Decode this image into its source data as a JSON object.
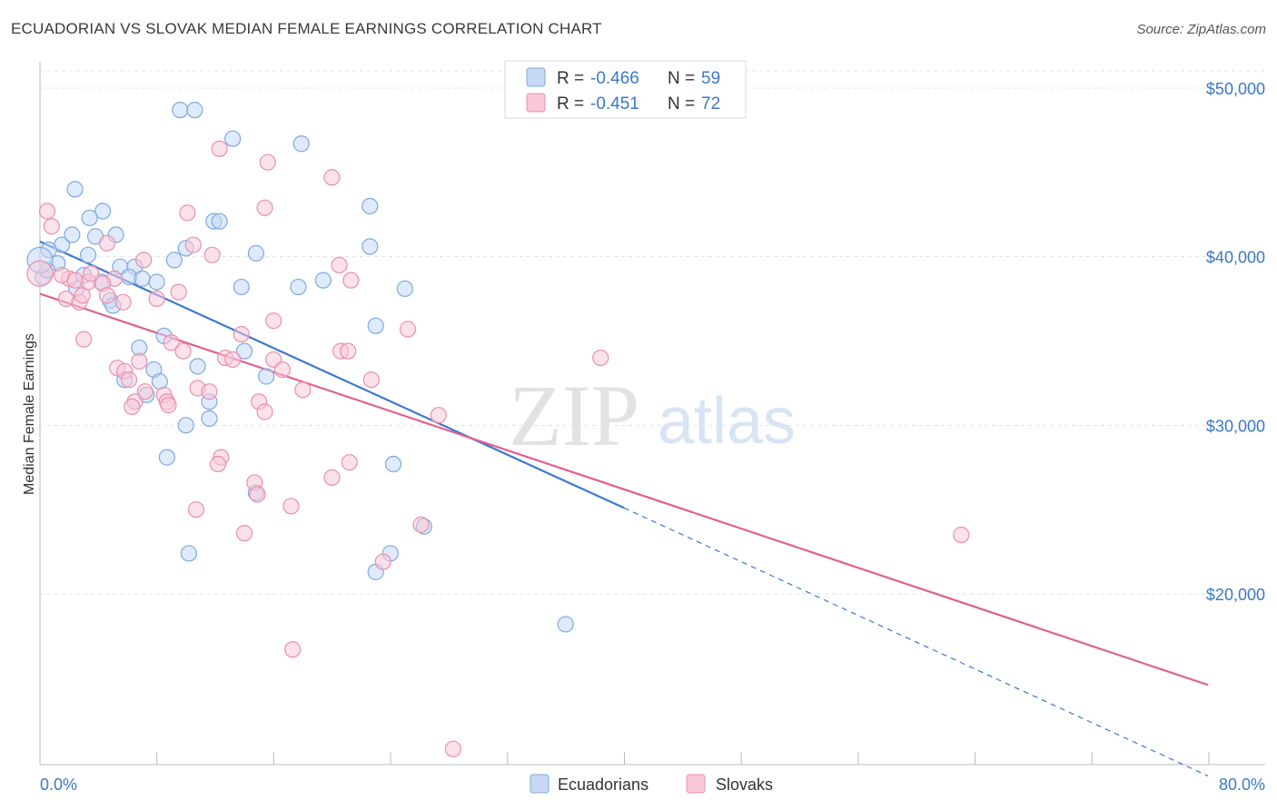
{
  "title": "ECUADORIAN VS SLOVAK MEDIAN FEMALE EARNINGS CORRELATION CHART",
  "source": "Source: ZipAtlas.com",
  "watermark": {
    "zip": "ZIP",
    "atlas": "atlas"
  },
  "legend": [
    {
      "r_label": "R =",
      "r_value": "-0.466",
      "n_label": "N =",
      "n_value": "59",
      "color": "#7fa9e0",
      "fill": "#c5d9f5"
    },
    {
      "r_label": "R =",
      "r_value": "-0.451",
      "n_label": "N =",
      "n_value": "72",
      "color": "#e890ac",
      "fill": "#f8c8d8"
    }
  ],
  "bottom_legend": [
    {
      "label": "Ecuadorians",
      "color": "#7fa9e0",
      "fill": "#c5d9f5"
    },
    {
      "label": "Slovaks",
      "color": "#e890ac",
      "fill": "#f8c8d8"
    }
  ],
  "chart_data": {
    "type": "scatter",
    "title": "ECUADORIAN VS SLOVAK MEDIAN FEMALE EARNINGS CORRELATION CHART",
    "xlabel": "",
    "ylabel": "Median Female Earnings",
    "xlim": [
      0,
      80
    ],
    "ylim": [
      10000,
      53000
    ],
    "x_tick_labels": [
      "0.0%",
      "80.0%"
    ],
    "y_ticks": [
      20000,
      30000,
      40000,
      50000
    ],
    "y_tick_labels": [
      "$20,000",
      "$30,000",
      "$40,000",
      "$50,000"
    ],
    "grid": true,
    "legend_position": "top-center",
    "series": [
      {
        "name": "Ecuadorians",
        "color": "#3b78d0",
        "fill": "#c5d9f5",
        "trend": {
          "x0": 0,
          "y0": 40900,
          "x1": 40,
          "y1": 25100,
          "dashed_to_x": 80,
          "dashed_to_y": 9200
        },
        "points": [
          [
            9.6,
            48700
          ],
          [
            10.6,
            48700
          ],
          [
            13.2,
            47000
          ],
          [
            17.9,
            46700
          ],
          [
            2.4,
            44000
          ],
          [
            4.3,
            42700
          ],
          [
            3.4,
            42300
          ],
          [
            11.9,
            42100
          ],
          [
            12.3,
            42100
          ],
          [
            22.6,
            43000
          ],
          [
            3.8,
            41200
          ],
          [
            5.2,
            41300
          ],
          [
            1.5,
            40700
          ],
          [
            22.6,
            40600
          ],
          [
            0.6,
            40400
          ],
          [
            2.2,
            41300
          ],
          [
            10.0,
            40500
          ],
          [
            14.8,
            40200
          ],
          [
            3.3,
            40100
          ],
          [
            1.2,
            39600
          ],
          [
            5.5,
            39400
          ],
          [
            6.5,
            39400
          ],
          [
            9.2,
            39800
          ],
          [
            0.2,
            38800
          ],
          [
            0.5,
            39200
          ],
          [
            3.0,
            38900
          ],
          [
            6.1,
            38800
          ],
          [
            7.0,
            38700
          ],
          [
            8.0,
            38500
          ],
          [
            13.8,
            38200
          ],
          [
            17.7,
            38200
          ],
          [
            19.4,
            38600
          ],
          [
            25.0,
            38100
          ],
          [
            4.2,
            38500
          ],
          [
            2.5,
            38100
          ],
          [
            4.8,
            37400
          ],
          [
            5.0,
            37100
          ],
          [
            23.0,
            35900
          ],
          [
            8.5,
            35300
          ],
          [
            6.8,
            34600
          ],
          [
            14.0,
            34400
          ],
          [
            10.8,
            33500
          ],
          [
            7.8,
            33300
          ],
          [
            5.8,
            32700
          ],
          [
            8.2,
            32600
          ],
          [
            15.5,
            32900
          ],
          [
            7.3,
            31800
          ],
          [
            11.6,
            31400
          ],
          [
            10.0,
            30000
          ],
          [
            11.6,
            30400
          ],
          [
            8.7,
            28100
          ],
          [
            24.2,
            27700
          ],
          [
            14.8,
            26000
          ],
          [
            26.3,
            24000
          ],
          [
            10.2,
            22400
          ],
          [
            24.0,
            22400
          ],
          [
            23.0,
            21300
          ],
          [
            36.0,
            18200
          ],
          [
            0.0,
            39800
          ]
        ]
      },
      {
        "name": "Slovaks",
        "color": "#e0608e",
        "fill": "#f8c8d8",
        "trend": {
          "x0": 0,
          "y0": 37800,
          "x1": 80,
          "y1": 14600
        },
        "points": [
          [
            12.3,
            46400
          ],
          [
            15.6,
            45600
          ],
          [
            20.0,
            44700
          ],
          [
            0.5,
            42700
          ],
          [
            15.4,
            42900
          ],
          [
            10.1,
            42600
          ],
          [
            0.8,
            41800
          ],
          [
            10.5,
            40700
          ],
          [
            11.8,
            40100
          ],
          [
            4.6,
            40800
          ],
          [
            7.1,
            39800
          ],
          [
            20.5,
            39500
          ],
          [
            2.0,
            38700
          ],
          [
            1.5,
            38900
          ],
          [
            5.1,
            38700
          ],
          [
            21.3,
            38600
          ],
          [
            3.3,
            38500
          ],
          [
            4.3,
            38400
          ],
          [
            9.5,
            37900
          ],
          [
            4.6,
            37700
          ],
          [
            1.8,
            37500
          ],
          [
            2.7,
            37300
          ],
          [
            5.7,
            37300
          ],
          [
            8.0,
            37500
          ],
          [
            16.0,
            36200
          ],
          [
            25.2,
            35700
          ],
          [
            13.8,
            35400
          ],
          [
            3.0,
            35100
          ],
          [
            9.0,
            34900
          ],
          [
            20.6,
            34400
          ],
          [
            21.1,
            34400
          ],
          [
            9.8,
            34400
          ],
          [
            12.7,
            34000
          ],
          [
            13.2,
            33900
          ],
          [
            16.0,
            33900
          ],
          [
            38.4,
            34000
          ],
          [
            5.3,
            33400
          ],
          [
            6.8,
            33800
          ],
          [
            5.8,
            33200
          ],
          [
            16.6,
            33300
          ],
          [
            6.1,
            32700
          ],
          [
            22.7,
            32700
          ],
          [
            7.2,
            32000
          ],
          [
            10.8,
            32200
          ],
          [
            11.6,
            32000
          ],
          [
            18.0,
            32100
          ],
          [
            8.5,
            31800
          ],
          [
            6.5,
            31400
          ],
          [
            15.0,
            31400
          ],
          [
            8.7,
            31400
          ],
          [
            8.8,
            31200
          ],
          [
            6.3,
            31100
          ],
          [
            15.4,
            30800
          ],
          [
            27.3,
            30600
          ],
          [
            12.4,
            28100
          ],
          [
            12.2,
            27700
          ],
          [
            21.2,
            27800
          ],
          [
            20.0,
            26900
          ],
          [
            14.7,
            26600
          ],
          [
            14.9,
            25900
          ],
          [
            17.2,
            25200
          ],
          [
            10.7,
            25000
          ],
          [
            14.0,
            23600
          ],
          [
            26.1,
            24100
          ],
          [
            23.5,
            21900
          ],
          [
            63.1,
            23500
          ],
          [
            17.3,
            16700
          ],
          [
            28.3,
            10800
          ],
          [
            0.0,
            39000
          ],
          [
            3.5,
            39000
          ],
          [
            2.9,
            37700
          ],
          [
            2.4,
            38600
          ]
        ]
      }
    ]
  }
}
